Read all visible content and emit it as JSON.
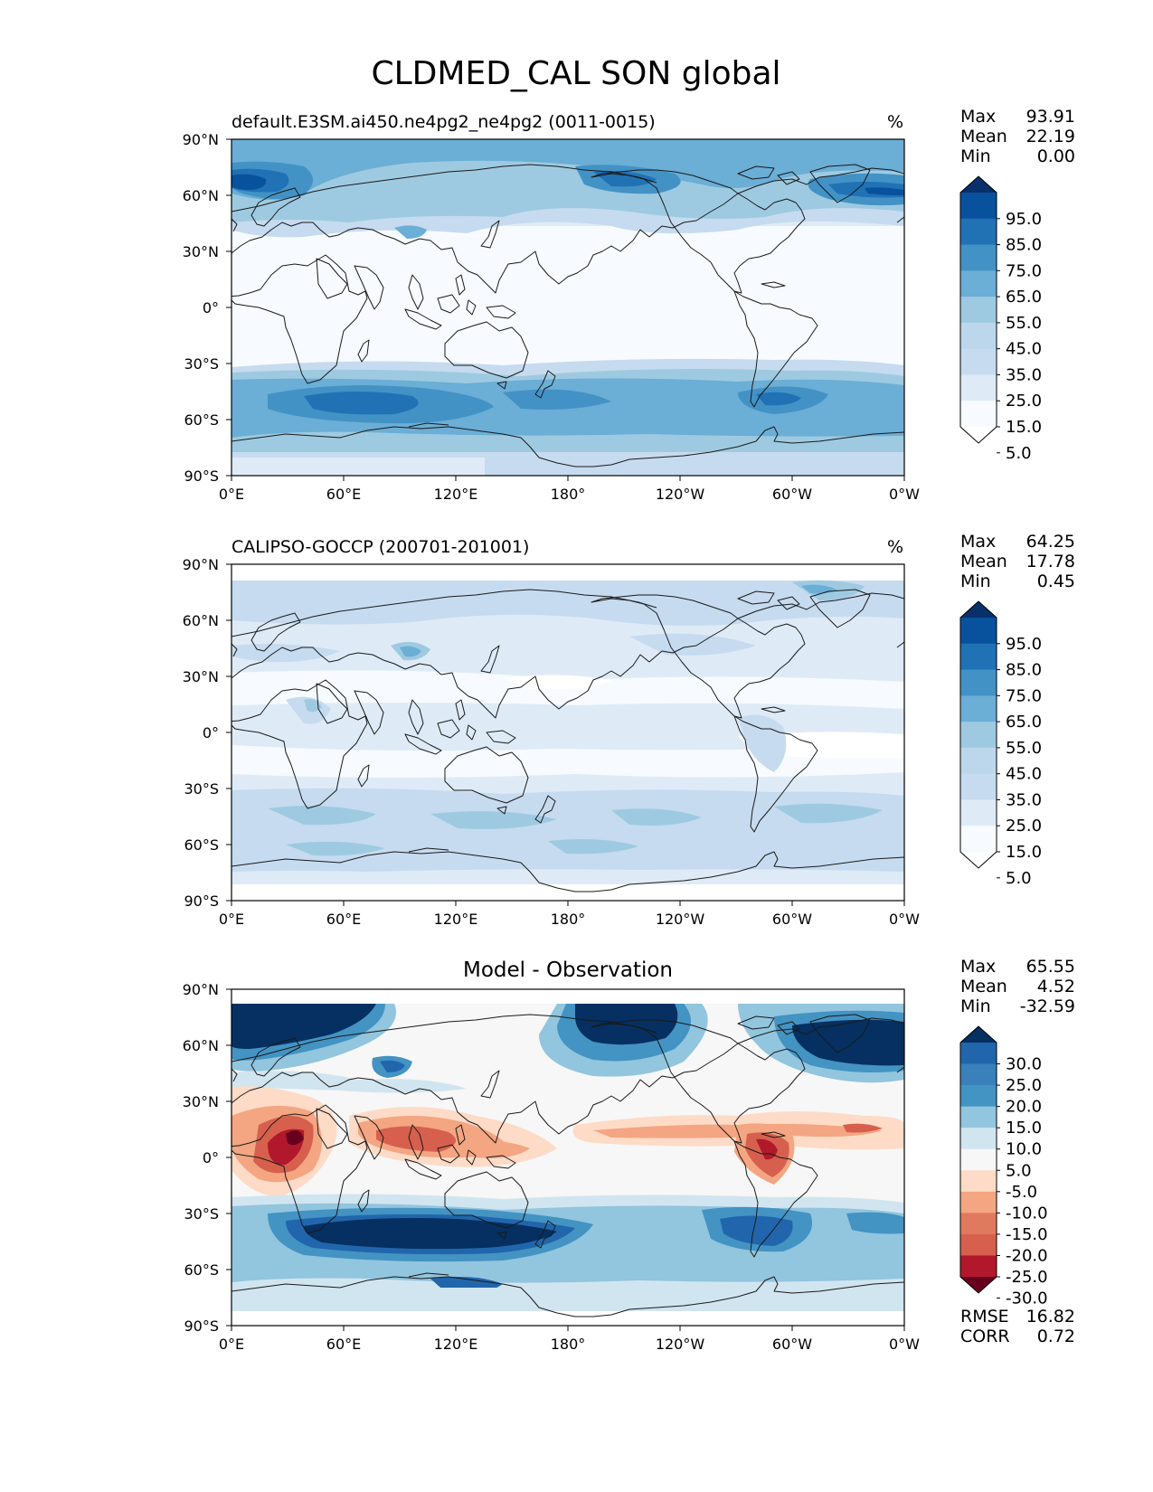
{
  "figure": {
    "title": "CLDMED_CAL SON global"
  },
  "axes": {
    "lat_ticks": [
      "90°N",
      "60°N",
      "30°N",
      "0°",
      "30°S",
      "60°S",
      "90°S"
    ],
    "lon_ticks": [
      "0°E",
      "60°E",
      "120°E",
      "180°",
      "120°W",
      "60°W",
      "0°W"
    ]
  },
  "panels": [
    {
      "title": "default.E3SM.ai450.ne4pg2_ne4pg2 (0011-0015)",
      "units": "%",
      "stats": [
        {
          "label": "Max",
          "value": "93.91"
        },
        {
          "label": "Mean",
          "value": "22.19"
        },
        {
          "label": "Min",
          "value": "0.00"
        }
      ],
      "colorbar": {
        "labels": [
          "95.0",
          "85.0",
          "75.0",
          "65.0",
          "55.0",
          "45.0",
          "35.0",
          "25.0",
          "15.0",
          "5.0"
        ],
        "colors": [
          "#08306b",
          "#08519c",
          "#2171b5",
          "#4292c6",
          "#6baed6",
          "#9ecae1",
          "#bcd7eb",
          "#c6dbef",
          "#deebf7",
          "#f7fbff",
          "#ffffff"
        ]
      }
    },
    {
      "title": "CALIPSO-GOCCP (200701-201001)",
      "units": "%",
      "stats": [
        {
          "label": "Max",
          "value": "64.25"
        },
        {
          "label": "Mean",
          "value": "17.78"
        },
        {
          "label": "Min",
          "value": "0.45"
        }
      ],
      "colorbar": {
        "labels": [
          "95.0",
          "85.0",
          "75.0",
          "65.0",
          "55.0",
          "45.0",
          "35.0",
          "25.0",
          "15.0",
          "5.0"
        ],
        "colors": [
          "#08306b",
          "#08519c",
          "#2171b5",
          "#4292c6",
          "#6baed6",
          "#9ecae1",
          "#bcd7eb",
          "#c6dbef",
          "#deebf7",
          "#f7fbff",
          "#ffffff"
        ]
      }
    },
    {
      "title": "Model - Observation",
      "units": "",
      "stats": [
        {
          "label": "Max",
          "value": "65.55"
        },
        {
          "label": "Mean",
          "value": "4.52"
        },
        {
          "label": "Min",
          "value": "-32.59"
        }
      ],
      "extra_stats": [
        {
          "label": "RMSE",
          "value": "16.82"
        },
        {
          "label": "CORR",
          "value": "0.72"
        }
      ],
      "colorbar": {
        "labels": [
          "30.0",
          "25.0",
          "20.0",
          "15.0",
          "10.0",
          "5.0",
          "-5.0",
          "-10.0",
          "-15.0",
          "-20.0",
          "-25.0",
          "-30.0"
        ],
        "colors": [
          "#053061",
          "#2166ac",
          "#3a80ba",
          "#4393c3",
          "#92c5de",
          "#d1e5f0",
          "#f7f7f7",
          "#fddbc7",
          "#f4a582",
          "#e07a5f",
          "#d6604d",
          "#b2182b",
          "#67001f"
        ]
      }
    }
  ]
}
